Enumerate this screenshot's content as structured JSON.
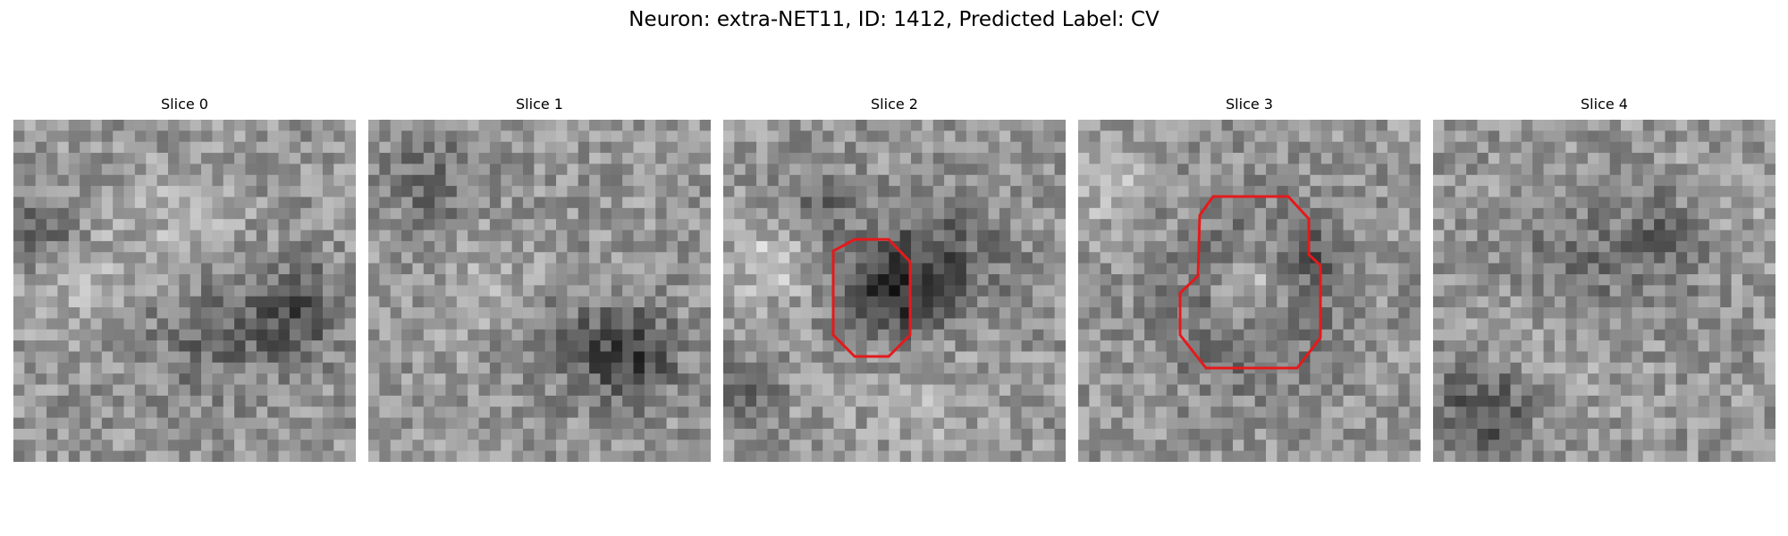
{
  "title": "Neuron: extra-NET11, ID: 1412, Predicted Label: CV",
  "panels": [
    {
      "label": "Slice 0",
      "has_roi": false
    },
    {
      "label": "Slice 1",
      "has_roi": false
    },
    {
      "label": "Slice 2",
      "has_roi": true
    },
    {
      "label": "Slice 3",
      "has_roi": true
    },
    {
      "label": "Slice 4",
      "has_roi": false
    }
  ],
  "colors": {
    "roi_outline": "#e41a1c",
    "background": "#ffffff"
  }
}
